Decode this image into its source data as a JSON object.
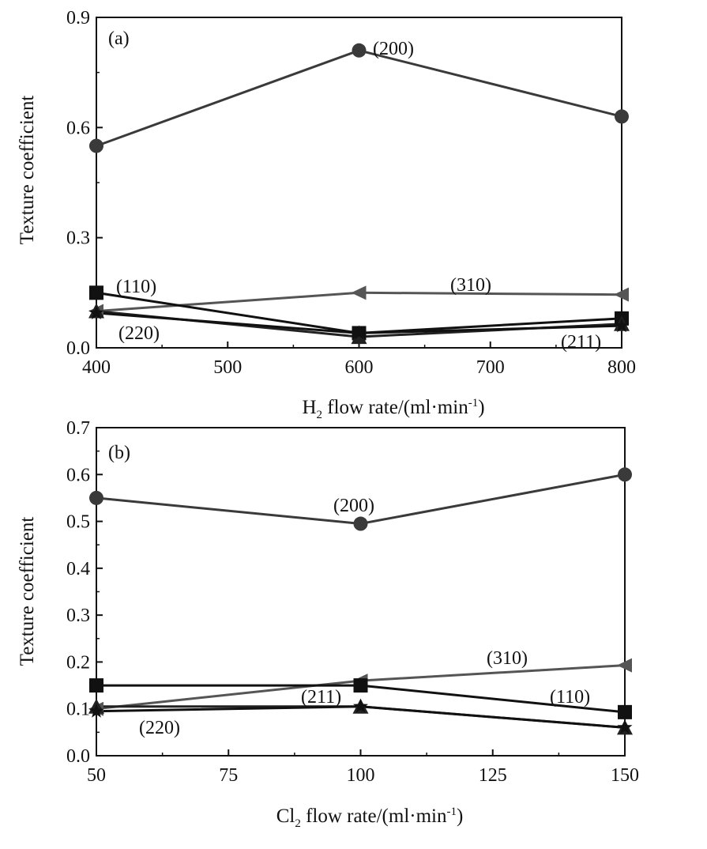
{
  "chart_data": [
    {
      "type": "line",
      "panel_label": "(a)",
      "xlabel": {
        "main": "H",
        "sub": "2",
        "rest": " flow rate/(ml·min",
        "sup": "-1",
        "end": ")"
      },
      "ylabel": "Texture coefficient",
      "xlim": [
        400,
        800
      ],
      "ylim": [
        0,
        0.9
      ],
      "xticks": [
        "400",
        "500",
        "600",
        "700",
        "800"
      ],
      "yticks": [
        "0.0",
        "0.3",
        "0.6",
        "0.9"
      ],
      "x": [
        400,
        600,
        800
      ],
      "series": [
        {
          "name": "(200)",
          "marker": "circle",
          "color": "#3a3a3a",
          "values": [
            0.55,
            0.81,
            0.63
          ]
        },
        {
          "name": "(310)",
          "marker": "triangle-left",
          "color": "#555555",
          "values": [
            0.1,
            0.15,
            0.145
          ]
        },
        {
          "name": "(110)",
          "marker": "square",
          "color": "#111111",
          "values": [
            0.15,
            0.04,
            0.08
          ]
        },
        {
          "name": "(220)",
          "marker": "triangle-up",
          "color": "#222222",
          "values": [
            0.1,
            0.03,
            0.065
          ]
        },
        {
          "name": "(211)",
          "marker": "star",
          "color": "#111111",
          "values": [
            0.095,
            0.04,
            0.06
          ]
        }
      ],
      "annotations": [
        "(200)",
        "(110)",
        "(310)",
        "(220)",
        "(211)"
      ]
    },
    {
      "type": "line",
      "panel_label": "(b)",
      "xlabel": {
        "main": "Cl",
        "sub": "2",
        "rest": " flow rate/(ml·min",
        "sup": "-1",
        "end": ")"
      },
      "ylabel": "Texture coefficient",
      "xlim": [
        50,
        150
      ],
      "ylim": [
        0,
        0.7
      ],
      "xticks": [
        "50",
        "75",
        "100",
        "125",
        "150"
      ],
      "yticks": [
        "0.0",
        "0.1",
        "0.2",
        "0.3",
        "0.4",
        "0.5",
        "0.6",
        "0.7"
      ],
      "x": [
        50,
        100,
        150
      ],
      "series": [
        {
          "name": "(200)",
          "marker": "circle",
          "color": "#3a3a3a",
          "values": [
            0.55,
            0.495,
            0.6
          ]
        },
        {
          "name": "(310)",
          "marker": "triangle-left",
          "color": "#555555",
          "values": [
            0.1,
            0.16,
            0.193
          ]
        },
        {
          "name": "(110)",
          "marker": "square",
          "color": "#111111",
          "values": [
            0.15,
            0.15,
            0.093
          ]
        },
        {
          "name": "(220)",
          "marker": "triangle-up",
          "color": "#222222",
          "values": [
            0.105,
            0.105,
            0.06
          ]
        },
        {
          "name": "(211)",
          "marker": "star",
          "color": "#111111",
          "values": [
            0.095,
            0.105,
            0.06
          ]
        }
      ],
      "annotations": [
        "(200)",
        "(310)",
        "(211)",
        "(110)",
        "(220)"
      ]
    }
  ]
}
